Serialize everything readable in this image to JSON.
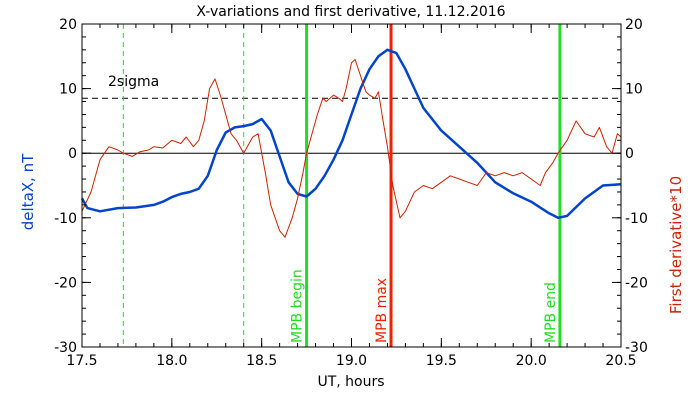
{
  "chart_data": {
    "type": "line",
    "title": "X-variations and first derivative, 11.12.2016",
    "xlabel": "UT, hours",
    "ylabel_left": "deltaX, nT",
    "ylabel_right": "First derivative*10",
    "xlim": [
      17.5,
      20.5
    ],
    "ylim": [
      -30,
      20
    ],
    "x_ticks": [
      17.5,
      18.0,
      18.5,
      19.0,
      19.5,
      20.0,
      20.5
    ],
    "x_tick_labels": [
      "17.5",
      "18.0",
      "18.5",
      "19.0",
      "19.5",
      "20.0",
      "20.5"
    ],
    "y_ticks": [
      20,
      10,
      0,
      -10,
      -20,
      -30
    ],
    "y_tick_labels": [
      "20",
      "10",
      "0",
      "-10",
      "-20",
      "-30"
    ],
    "threshold": {
      "label": "2sigma",
      "value": 8.5
    },
    "colors": {
      "deltaX": "#0044cc",
      "derivative": "#cc2200",
      "mpb_green": "#22dd22",
      "mpb_red": "#ee2200",
      "axes": "#000000"
    },
    "series": [
      {
        "key": "deltaX",
        "color": "#0044cc",
        "points": [
          [
            17.5,
            -7.0
          ],
          [
            17.53,
            -8.5
          ],
          [
            17.6,
            -9.0
          ],
          [
            17.7,
            -8.5
          ],
          [
            17.8,
            -8.4
          ],
          [
            17.9,
            -8.0
          ],
          [
            17.95,
            -7.5
          ],
          [
            18.0,
            -6.8
          ],
          [
            18.05,
            -6.3
          ],
          [
            18.1,
            -6.0
          ],
          [
            18.15,
            -5.5
          ],
          [
            18.2,
            -3.5
          ],
          [
            18.25,
            0.5
          ],
          [
            18.3,
            3.2
          ],
          [
            18.35,
            4.0
          ],
          [
            18.4,
            4.2
          ],
          [
            18.45,
            4.5
          ],
          [
            18.5,
            5.3
          ],
          [
            18.55,
            3.5
          ],
          [
            18.6,
            -0.5
          ],
          [
            18.65,
            -4.5
          ],
          [
            18.7,
            -6.3
          ],
          [
            18.75,
            -6.7
          ],
          [
            18.8,
            -5.5
          ],
          [
            18.85,
            -3.5
          ],
          [
            18.9,
            -1.0
          ],
          [
            18.95,
            2.0
          ],
          [
            19.0,
            6.0
          ],
          [
            19.05,
            10.0
          ],
          [
            19.1,
            13.0
          ],
          [
            19.15,
            15.0
          ],
          [
            19.2,
            16.0
          ],
          [
            19.25,
            15.5
          ],
          [
            19.3,
            13.0
          ],
          [
            19.35,
            10.0
          ],
          [
            19.4,
            7.0
          ],
          [
            19.5,
            3.5
          ],
          [
            19.6,
            1.0
          ],
          [
            19.7,
            -1.5
          ],
          [
            19.8,
            -4.5
          ],
          [
            19.9,
            -6.2
          ],
          [
            20.0,
            -7.5
          ],
          [
            20.1,
            -9.3
          ],
          [
            20.15,
            -10.0
          ],
          [
            20.2,
            -9.7
          ],
          [
            20.3,
            -7.0
          ],
          [
            20.4,
            -5.0
          ],
          [
            20.5,
            -4.8
          ]
        ]
      },
      {
        "key": "derivative",
        "color": "#cc2200",
        "points": [
          [
            17.5,
            -9.0
          ],
          [
            17.55,
            -6.0
          ],
          [
            17.6,
            -1.0
          ],
          [
            17.65,
            1.0
          ],
          [
            17.7,
            0.5
          ],
          [
            17.73,
            0.0
          ],
          [
            17.78,
            -0.5
          ],
          [
            17.82,
            0.2
          ],
          [
            17.87,
            0.5
          ],
          [
            17.9,
            1.0
          ],
          [
            17.95,
            0.8
          ],
          [
            18.0,
            2.0
          ],
          [
            18.05,
            1.5
          ],
          [
            18.08,
            2.5
          ],
          [
            18.12,
            1.0
          ],
          [
            18.15,
            2.0
          ],
          [
            18.18,
            5.0
          ],
          [
            18.21,
            10.0
          ],
          [
            18.24,
            11.5
          ],
          [
            18.27,
            9.0
          ],
          [
            18.3,
            6.0
          ],
          [
            18.33,
            3.0
          ],
          [
            18.36,
            2.0
          ],
          [
            18.4,
            0.0
          ],
          [
            18.45,
            2.5
          ],
          [
            18.48,
            3.0
          ],
          [
            18.52,
            -3.0
          ],
          [
            18.55,
            -8.0
          ],
          [
            18.6,
            -12.0
          ],
          [
            18.63,
            -13.0
          ],
          [
            18.67,
            -10.0
          ],
          [
            18.7,
            -7.0
          ],
          [
            18.73,
            -3.0
          ],
          [
            18.75,
            0.0
          ],
          [
            18.78,
            3.0
          ],
          [
            18.81,
            6.0
          ],
          [
            18.84,
            8.5
          ],
          [
            18.86,
            8.0
          ],
          [
            18.9,
            9.0
          ],
          [
            18.93,
            8.5
          ],
          [
            18.95,
            8.0
          ],
          [
            18.97,
            10.0
          ],
          [
            19.0,
            14.0
          ],
          [
            19.02,
            14.5
          ],
          [
            19.05,
            12.0
          ],
          [
            19.08,
            9.5
          ],
          [
            19.1,
            9.0
          ],
          [
            19.13,
            8.5
          ],
          [
            19.15,
            9.5
          ],
          [
            19.17,
            6.0
          ],
          [
            19.2,
            1.0
          ],
          [
            19.23,
            -5.0
          ],
          [
            19.27,
            -10.0
          ],
          [
            19.3,
            -9.0
          ],
          [
            19.35,
            -6.0
          ],
          [
            19.4,
            -5.0
          ],
          [
            19.45,
            -5.5
          ],
          [
            19.5,
            -4.5
          ],
          [
            19.55,
            -3.5
          ],
          [
            19.6,
            -4.0
          ],
          [
            19.65,
            -4.5
          ],
          [
            19.7,
            -5.0
          ],
          [
            19.75,
            -3.0
          ],
          [
            19.8,
            -3.5
          ],
          [
            19.85,
            -3.0
          ],
          [
            19.9,
            -3.5
          ],
          [
            19.95,
            -3.0
          ],
          [
            20.0,
            -4.0
          ],
          [
            20.05,
            -5.0
          ],
          [
            20.08,
            -3.0
          ],
          [
            20.12,
            -1.5
          ],
          [
            20.15,
            0.0
          ],
          [
            20.2,
            2.0
          ],
          [
            20.25,
            5.0
          ],
          [
            20.3,
            3.0
          ],
          [
            20.35,
            2.5
          ],
          [
            20.38,
            4.0
          ],
          [
            20.42,
            1.0
          ],
          [
            20.45,
            0.0
          ],
          [
            20.48,
            3.0
          ],
          [
            20.5,
            2.5
          ]
        ]
      }
    ],
    "markers": [
      {
        "key": "dash1",
        "x": 17.73,
        "style": "dashed",
        "color": "#22dd22",
        "label": ""
      },
      {
        "key": "dash2",
        "x": 18.4,
        "style": "dashed",
        "color": "#22dd22",
        "label": ""
      },
      {
        "key": "mpb-begin",
        "x": 18.75,
        "style": "solid",
        "color": "#22dd22",
        "label": "MPB begin"
      },
      {
        "key": "mpb-max",
        "x": 19.22,
        "style": "solid",
        "color": "#ee2200",
        "label": "MPB max"
      },
      {
        "key": "mpb-end",
        "x": 20.16,
        "style": "solid",
        "color": "#22dd22",
        "label": "MPB end"
      }
    ]
  }
}
